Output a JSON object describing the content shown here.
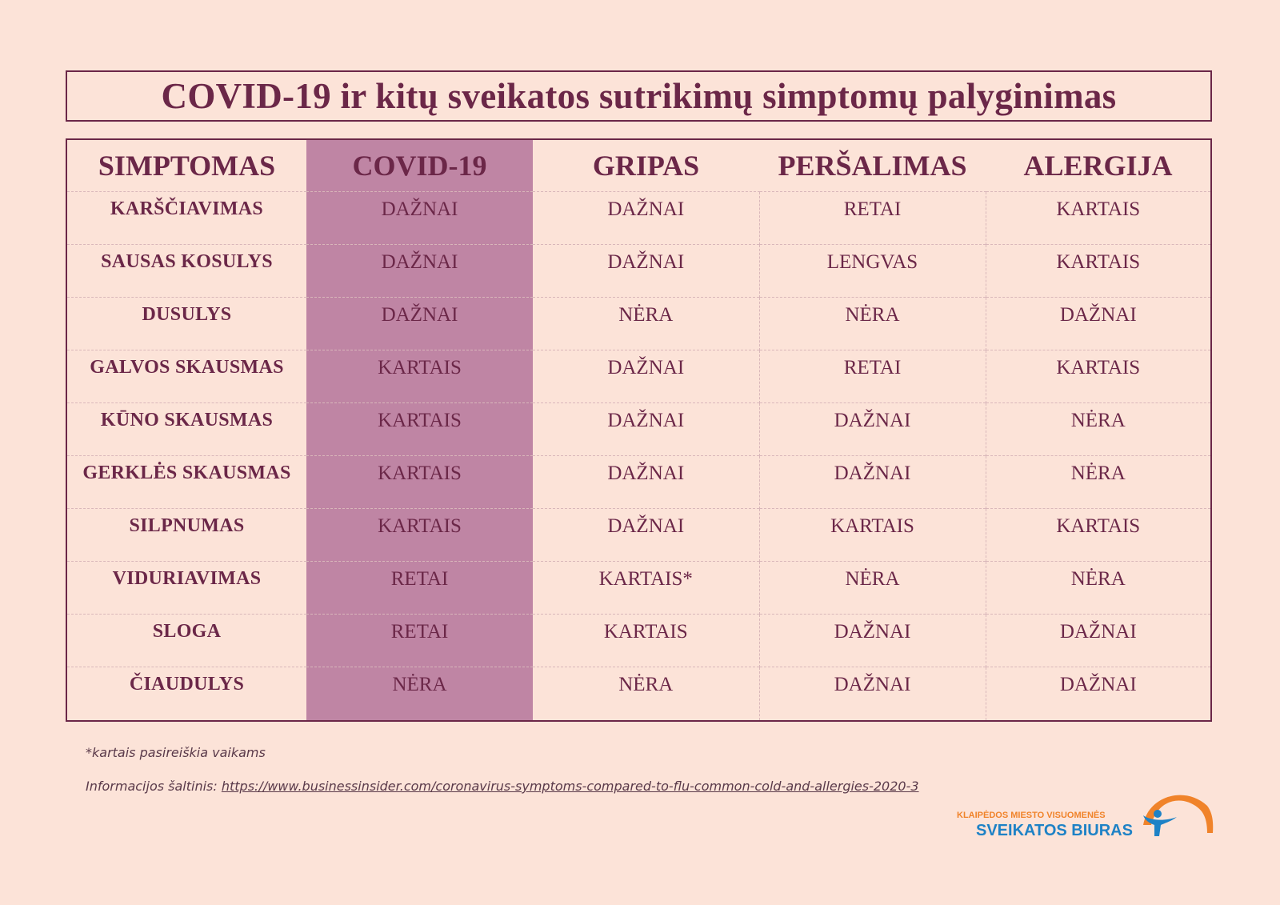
{
  "title": "COVID-19 ir kitų sveikatos sutrikimų simptomų palyginimas",
  "table": {
    "headers": [
      "SIMPTOMAS",
      "COVID-19",
      "GRIPAS",
      "PERŠALIMAS",
      "ALERGIJA"
    ],
    "rows": [
      [
        "KARŠČIAVIMAS",
        "DAŽNAI",
        "DAŽNAI",
        "RETAI",
        "KARTAIS"
      ],
      [
        "SAUSAS KOSULYS",
        "DAŽNAI",
        "DAŽNAI",
        "LENGVAS",
        "KARTAIS"
      ],
      [
        "DUSULYS",
        "DAŽNAI",
        "NĖRA",
        "NĖRA",
        "DAŽNAI"
      ],
      [
        "GALVOS SKAUSMAS",
        "KARTAIS",
        "DAŽNAI",
        "RETAI",
        "KARTAIS"
      ],
      [
        "KŪNO SKAUSMAS",
        "KARTAIS",
        "DAŽNAI",
        "DAŽNAI",
        "NĖRA"
      ],
      [
        "GERKLĖS SKAUSMAS",
        "KARTAIS",
        "DAŽNAI",
        "DAŽNAI",
        "NĖRA"
      ],
      [
        "SILPNUMAS",
        "KARTAIS",
        "DAŽNAI",
        "KARTAIS",
        "KARTAIS"
      ],
      [
        "VIDURIAVIMAS",
        "RETAI",
        "KARTAIS*",
        "NĖRA",
        "NĖRA"
      ],
      [
        "SLOGA",
        "RETAI",
        "KARTAIS",
        "DAŽNAI",
        "DAŽNAI"
      ],
      [
        "ČIAUDULYS",
        "NĖRA",
        "NĖRA",
        "DAŽNAI",
        "DAŽNAI"
      ]
    ]
  },
  "footnote": "*kartais pasireiškia vaikams",
  "source": {
    "label": "Informacijos šaltinis: ",
    "link_text": "https://www.businessinsider.com/coronavirus-symptoms-compared-to-flu-common-cold-and-allergies-2020-3"
  },
  "logo": {
    "line1": "KLAIPĖDOS MIESTO VISUOMENĖS",
    "line2": "SVEIKATOS BIURAS"
  },
  "colors": {
    "background": "#fce3d8",
    "text": "#6b2748",
    "covid_column": "#bf85a4",
    "logo_orange": "#f0832a",
    "logo_blue": "#1e82c6"
  }
}
